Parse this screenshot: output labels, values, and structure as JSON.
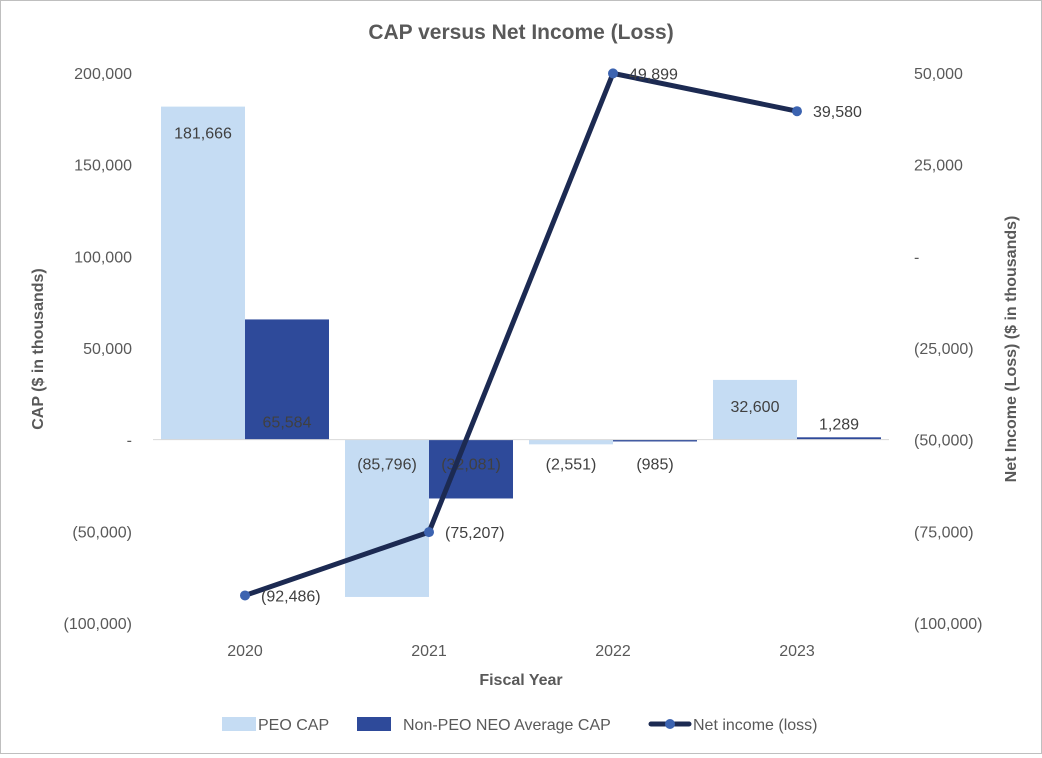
{
  "chart_data": {
    "type": "bar",
    "title": "CAP versus Net Income (Loss)",
    "xlabel": "Fiscal Year",
    "ylabel": "CAP ($ in thousands)",
    "y2label": "Net Income (Loss) ($ in thousands)",
    "categories": [
      "2020",
      "2021",
      "2022",
      "2023"
    ],
    "ylim": [
      -100000,
      200000
    ],
    "y2lim": [
      -100000,
      50000
    ],
    "yticks": [
      {
        "value": 200000,
        "label": "200,000"
      },
      {
        "value": 150000,
        "label": "150,000"
      },
      {
        "value": 100000,
        "label": "100,000"
      },
      {
        "value": 50000,
        "label": "50,000"
      },
      {
        "value": 0,
        "label": "-"
      },
      {
        "value": -50000,
        "label": "(50,000)"
      },
      {
        "value": -100000,
        "label": "(100,000)"
      }
    ],
    "y2ticks": [
      {
        "value": 50000,
        "label": "50,000"
      },
      {
        "value": 25000,
        "label": "25,000"
      },
      {
        "value": 0,
        "label": "-"
      },
      {
        "value": -25000,
        "label": "(25,000)"
      },
      {
        "value": -50000,
        "label": "(50,000)"
      },
      {
        "value": -75000,
        "label": "(75,000)"
      },
      {
        "value": -100000,
        "label": "(100,000)"
      }
    ],
    "series": [
      {
        "name": "PEO CAP",
        "kind": "bar",
        "axis": "left",
        "color": "#c5dcf3",
        "values": [
          181666,
          -85796,
          -2551,
          32600
        ],
        "labels": [
          "181,666",
          "(85,796)",
          "(2,551)",
          "32,600"
        ]
      },
      {
        "name": "Non-PEO NEO Average CAP",
        "kind": "bar",
        "axis": "left",
        "color": "#2e4a9a",
        "values": [
          65584,
          -32081,
          -985,
          1289
        ],
        "labels": [
          "65,584",
          "(32,081)",
          "(985)",
          "1,289"
        ]
      },
      {
        "name": "Net income (loss)",
        "kind": "line",
        "axis": "right",
        "color": "#1c2a52",
        "marker_color": "#3c63b0",
        "values": [
          -92486,
          -75207,
          49899,
          39580
        ],
        "labels": [
          "(92,486)",
          "(75,207)",
          "49,899",
          "39,580"
        ]
      }
    ],
    "legend_position": "bottom",
    "grid": false
  }
}
